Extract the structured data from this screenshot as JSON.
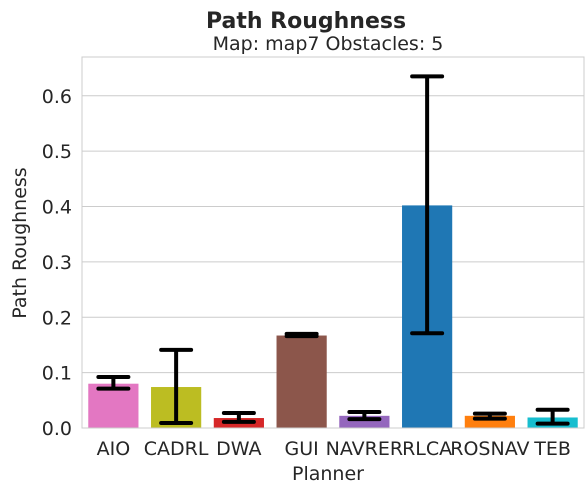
{
  "chart_data": {
    "type": "bar",
    "suptitle": "Path Roughness",
    "title": "Map: map7 Obstacles: 5",
    "xlabel": "Planner",
    "ylabel": "Path Roughness",
    "categories": [
      "AIO",
      "CADRL",
      "DWA",
      "GUI",
      "NAVRER",
      "RLCA",
      "ROSNAV",
      "TEB"
    ],
    "values": [
      0.08,
      0.074,
      0.018,
      0.167,
      0.022,
      0.402,
      0.022,
      0.019
    ],
    "error_low": [
      0.071,
      0.009,
      0.011,
      0.166,
      0.016,
      0.171,
      0.017,
      0.008
    ],
    "error_high": [
      0.092,
      0.141,
      0.027,
      0.17,
      0.029,
      0.635,
      0.026,
      0.033
    ],
    "colors": [
      "#e377c2",
      "#bcbd22",
      "#d62728",
      "#8c564b",
      "#9467bd",
      "#1f77b4",
      "#ff7f0e",
      "#17becf"
    ],
    "ylim": [
      0,
      0.67
    ],
    "yticks": [
      0.0,
      0.1,
      0.2,
      0.3,
      0.4,
      0.5,
      0.6
    ],
    "ytick_labels": [
      "0.0",
      "0.1",
      "0.2",
      "0.3",
      "0.4",
      "0.5",
      "0.6"
    ],
    "grid": true,
    "legend": "none"
  }
}
